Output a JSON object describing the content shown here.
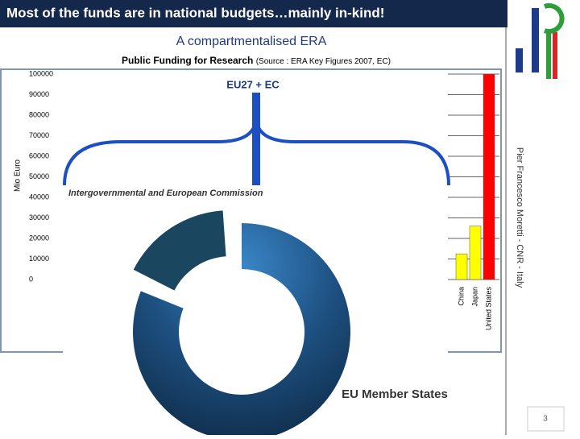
{
  "slide": {
    "title": "Most of the funds are in national budgets…mainly in-kind!",
    "subtitle": "A compartmentalised ERA",
    "side_note": "Pier Francesco Moretti - CNR - Italy",
    "page_number": "3"
  },
  "chart": {
    "title": "Public Funding for Research",
    "source": "(Source : ERA Key Figures 2007, EC)",
    "y_label": "Mio Euro",
    "ylim": [
      0,
      100000
    ],
    "yticks": [
      0,
      10000,
      20000,
      30000,
      40000,
      50000,
      60000,
      70000,
      80000,
      90000,
      100000
    ],
    "callout": "EU27 + EC",
    "callout_value": 91000,
    "categories": [
      "China",
      "Japan",
      "United States"
    ],
    "values": [
      12500,
      26000,
      100000
    ],
    "colors": [
      "#ffff00",
      "#ffff00",
      "#ff0000"
    ]
  },
  "donut": {
    "label_top": "Intergovernmental and European Commission",
    "label_bottom": "EU Member States"
  }
}
